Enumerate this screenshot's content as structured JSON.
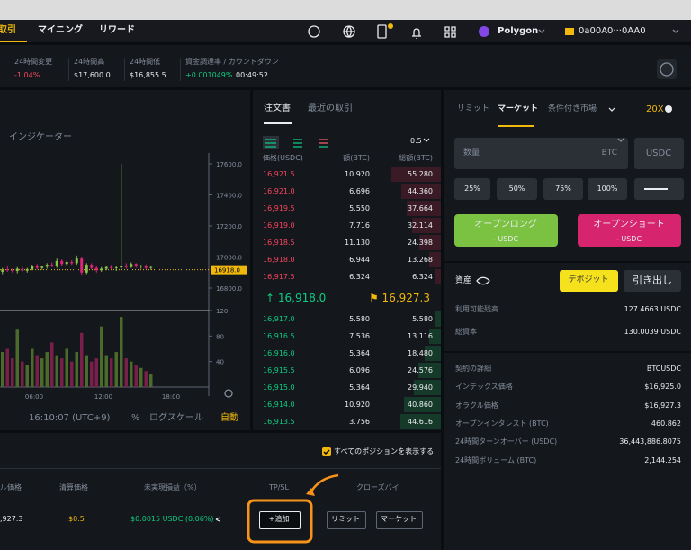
{
  "nav": {
    "trade": "取引",
    "mining": "マイニング",
    "rewards": "リワード",
    "network": "Polygon",
    "wallet": "0a00A0···0AA0"
  },
  "stats": [
    {
      "label": "24時間変更",
      "value": "-1.04%"
    },
    {
      "label": "24時間高",
      "value": "$17,600.0"
    },
    {
      "label": "24時間低",
      "value": "$16,855.5"
    },
    {
      "label": "資金調達率 / カウントダウン",
      "value": "+0.001049%",
      "countdown": "00:49:52"
    }
  ],
  "chart": {
    "indicator": "インジケーター",
    "price_ticks": [
      {
        "value": 17600,
        "label": "17600.0"
      },
      {
        "value": 17400,
        "label": "17400.0"
      },
      {
        "value": 17200,
        "label": "17200.0"
      },
      {
        "value": 17000,
        "label": "17000.0"
      },
      {
        "value": 16800,
        "label": "16800.0"
      }
    ],
    "current_price": {
      "value": 16918,
      "label": "16918.0"
    },
    "volume_ticks": [
      120,
      80,
      40
    ],
    "time_labels": [
      "06:00",
      "12:00",
      "18:00"
    ],
    "candles": [
      [
        16905,
        16930,
        16890,
        16920
      ],
      [
        16920,
        16945,
        16905,
        16915
      ],
      [
        16915,
        16925,
        16900,
        16910
      ],
      [
        16910,
        16935,
        16895,
        16925
      ],
      [
        16925,
        16940,
        16905,
        16912
      ],
      [
        16912,
        16930,
        16900,
        16922
      ],
      [
        16922,
        16950,
        16915,
        16940
      ],
      [
        16940,
        16955,
        16920,
        16930
      ],
      [
        16930,
        16945,
        16918,
        16938
      ],
      [
        16938,
        16960,
        16925,
        16950
      ],
      [
        16950,
        16965,
        16935,
        16945
      ],
      [
        16945,
        16990,
        16930,
        16975
      ],
      [
        16975,
        16985,
        16940,
        16955
      ],
      [
        16955,
        16975,
        16945,
        16968
      ],
      [
        16968,
        16980,
        16950,
        16960
      ],
      [
        16960,
        17010,
        16950,
        16990
      ],
      [
        16990,
        17000,
        16880,
        16900
      ],
      [
        16900,
        16960,
        16890,
        16950
      ],
      [
        16950,
        16960,
        16920,
        16930
      ],
      [
        16930,
        16940,
        16900,
        16915
      ],
      [
        16915,
        16935,
        16905,
        16925
      ],
      [
        16925,
        16945,
        16915,
        16935
      ],
      [
        16935,
        16950,
        16920,
        16928
      ],
      [
        16928,
        16940,
        16910,
        16932
      ],
      [
        16932,
        17600,
        16920,
        16945
      ],
      [
        16945,
        16960,
        16925,
        16935
      ],
      [
        16935,
        16965,
        16930,
        16955
      ],
      [
        16955,
        16960,
        16930,
        16940
      ],
      [
        16940,
        16950,
        16925,
        16945
      ],
      [
        16945,
        16952,
        16920,
        16930
      ],
      [
        16930,
        16945,
        16918,
        16935
      ]
    ],
    "volumes": [
      55,
      60,
      45,
      90,
      40,
      35,
      60,
      50,
      45,
      55,
      70,
      50,
      45,
      60,
      40,
      55,
      85,
      50,
      40,
      45,
      95,
      50,
      45,
      55,
      110,
      45,
      40,
      35,
      30,
      25,
      20
    ],
    "clock": "16:10:07 (UTC+9)",
    "percent": "%",
    "log_scale": "ログスケール",
    "auto": "自動"
  },
  "orderbook": {
    "tabs": [
      "注文書",
      "最近の取引"
    ],
    "step": "0.5",
    "headers": [
      "価格(USDC)",
      "額(BTC)",
      "総額(BTC)"
    ],
    "asks": [
      {
        "price": "16,921.5",
        "amount": "10.920",
        "total": {
          "value": 55.28,
          "label": "55.280"
        }
      },
      {
        "price": "16,921.0",
        "amount": "6.696",
        "total": {
          "value": 44.36,
          "label": "44.360"
        }
      },
      {
        "price": "16,919.5",
        "amount": "5.550",
        "total": {
          "value": 37.664,
          "label": "37.664"
        }
      },
      {
        "price": "16,919.0",
        "amount": "7.716",
        "total": {
          "value": 32.114,
          "label": "32.114"
        }
      },
      {
        "price": "16,918.5",
        "amount": "11.130",
        "total": {
          "value": 24.398,
          "label": "24.398"
        }
      },
      {
        "price": "16,918.0",
        "amount": "6.944",
        "total": {
          "value": 13.268,
          "label": "13.268"
        }
      },
      {
        "price": "16,917.5",
        "amount": "6.324",
        "total": {
          "value": 6.324,
          "label": "6.324"
        }
      }
    ],
    "last": "↑ 16,918.0",
    "mark": "⚑ 16,927.3",
    "bids": [
      {
        "price": "16,917.0",
        "amount": "5.580",
        "total": {
          "value": 5.58,
          "label": "5.580"
        }
      },
      {
        "price": "16,916.5",
        "amount": "7.536",
        "total": {
          "value": 13.116,
          "label": "13.116"
        }
      },
      {
        "price": "16,916.0",
        "amount": "5.364",
        "total": {
          "value": 18.48,
          "label": "18.480"
        }
      },
      {
        "price": "16,915.5",
        "amount": "6.096",
        "total": {
          "value": 24.576,
          "label": "24.576"
        }
      },
      {
        "price": "16,915.0",
        "amount": "5.364",
        "total": {
          "value": 29.94,
          "label": "29.940"
        }
      },
      {
        "price": "16,914.0",
        "amount": "10.920",
        "total": {
          "value": 40.86,
          "label": "40.860"
        }
      },
      {
        "price": "16,913.5",
        "amount": "3.756",
        "total": {
          "value": 44.616,
          "label": "44.616"
        }
      }
    ]
  },
  "order_form": {
    "tabs": [
      "リミット",
      "マーケット",
      "条件付き市場"
    ],
    "leverage": "20X",
    "quantity": "数量",
    "unit": "BTC",
    "currency": "USDC",
    "percents": [
      "25%",
      "50%",
      "75%",
      "100%"
    ],
    "long": {
      "label": "オープンロング",
      "sub": "- USDC"
    },
    "short": {
      "label": "オープンショート",
      "sub": "- USDC"
    }
  },
  "assets": {
    "title": "資産",
    "deposit": "デポジット",
    "withdraw": "引き出し",
    "rows": [
      [
        "利用可能残高",
        "127.4663 USDC"
      ],
      [
        "総資本",
        "130.0039 USDC"
      ]
    ]
  },
  "contract": {
    "rows": [
      [
        "契約の詳細",
        "BTCUSDC"
      ],
      [
        "インデックス価格",
        "$16,925.0"
      ],
      [
        "オラクル価格",
        "$16,927.3"
      ],
      [
        "オープンインタレスト (BTC)",
        "460.862"
      ],
      [
        "24時間ターンオーバー (USDC)",
        "36,443,886.8075"
      ],
      [
        "24時間ボリューム (BTC)",
        "2,144.254"
      ]
    ]
  },
  "positions": {
    "show_all": "すべてのポジションを表示する",
    "headers": [
      "ル価格",
      "清算価格",
      "未実現損益（%）",
      "TP/SL",
      "クローズバイ"
    ],
    "row": {
      "price": ",927.3",
      "liquidation": "$0.5",
      "pnl": "$0.0015 USDC (0.06%)",
      "add": "+追加",
      "limit": "リミット",
      "market": "マーケット"
    }
  }
}
